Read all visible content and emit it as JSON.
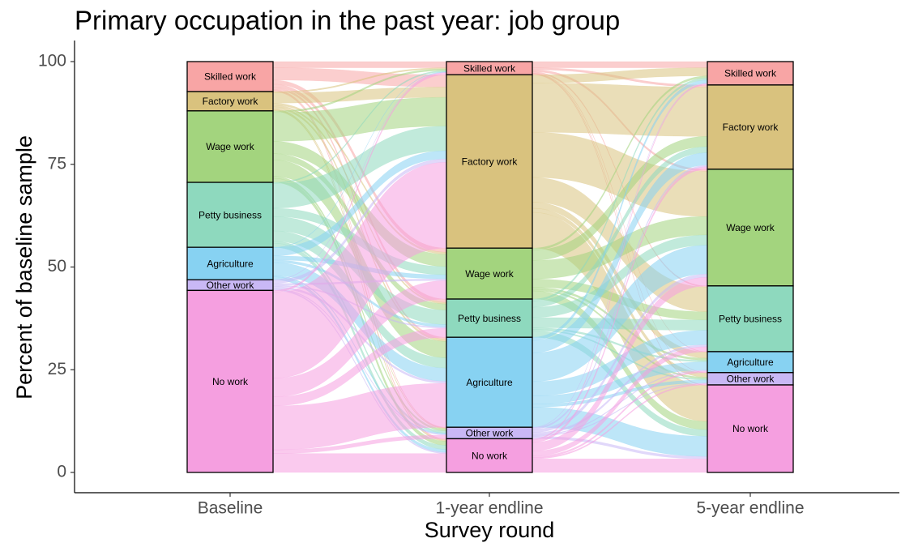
{
  "chart_data": {
    "type": "alluvial",
    "title": "Primary occupation in the past year: job group",
    "x_label": "Survey round",
    "y_label": "Percent of baseline sample",
    "rounds": [
      "Baseline",
      "1-year endline",
      "5-year endline"
    ],
    "categories": [
      "Skilled work",
      "Factory work",
      "Wage work",
      "Petty business",
      "Agriculture",
      "Other work",
      "No work"
    ],
    "colors": [
      "#f8a5a5",
      "#d9c27e",
      "#a3d47e",
      "#8ed9be",
      "#87d2f2",
      "#c9b8f5",
      "#f59fe0"
    ],
    "strata": [
      [
        7.3,
        4.7,
        17.4,
        15.8,
        7.9,
        2.6,
        44.3
      ],
      [
        3.2,
        42.2,
        12.4,
        9.3,
        21.9,
        2.8,
        8.2
      ],
      [
        5.7,
        20.5,
        28.4,
        16.0,
        5.1,
        3.0,
        21.3
      ]
    ],
    "flows": [
      [
        [
          1.5,
          3.0,
          1.0,
          0.8,
          0.5,
          0.2,
          0.3
        ],
        [
          0.3,
          2.5,
          0.5,
          0.4,
          0.5,
          0.2,
          0.3
        ],
        [
          0.4,
          7.0,
          3.0,
          1.5,
          4.0,
          0.5,
          1.0
        ],
        [
          0.3,
          6.0,
          2.0,
          3.5,
          2.5,
          0.5,
          1.0
        ],
        [
          0.1,
          2.0,
          1.0,
          0.6,
          3.2,
          0.3,
          0.7
        ],
        [
          0.1,
          0.8,
          0.4,
          0.3,
          0.5,
          0.2,
          0.3
        ],
        [
          0.5,
          20.9,
          4.5,
          2.2,
          10.7,
          0.9,
          4.6
        ]
      ],
      [
        [
          1.5,
          0.5,
          0.5,
          0.3,
          0.1,
          0.1,
          0.2
        ],
        [
          2.0,
          12.0,
          11.0,
          6.0,
          1.5,
          1.0,
          8.7
        ],
        [
          0.5,
          2.5,
          4.5,
          2.0,
          0.5,
          0.4,
          2.0
        ],
        [
          0.5,
          1.5,
          2.5,
          2.5,
          0.4,
          0.3,
          1.6
        ],
        [
          0.8,
          3.0,
          7.0,
          3.5,
          2.0,
          0.7,
          4.9
        ],
        [
          0.1,
          0.4,
          0.8,
          0.5,
          0.2,
          0.2,
          0.6
        ],
        [
          0.3,
          0.6,
          2.1,
          1.2,
          0.4,
          0.3,
          3.3
        ]
      ]
    ],
    "ylim": [
      0,
      100
    ],
    "yticks": [
      0,
      25,
      50,
      75,
      100
    ]
  }
}
